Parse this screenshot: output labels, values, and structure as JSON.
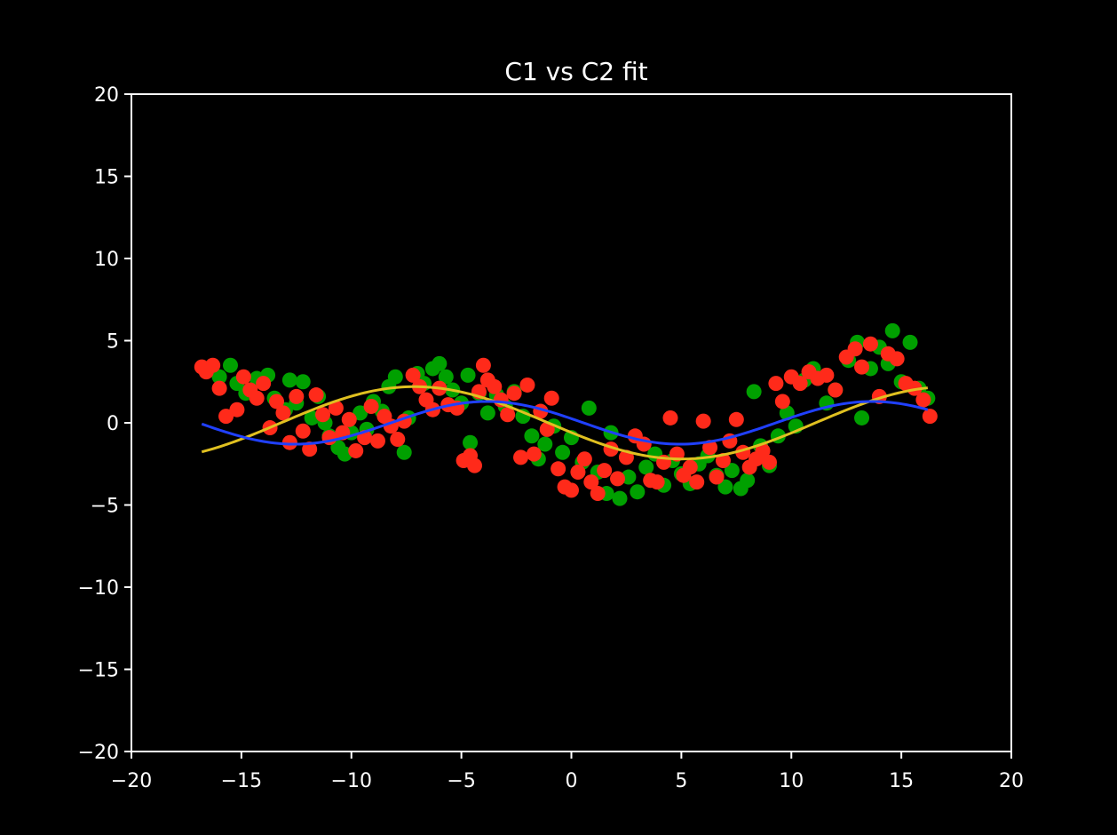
{
  "chart_data": {
    "type": "scatter",
    "title": "C1 vs C2 fit",
    "xlabel": "",
    "ylabel": "",
    "xlim": [
      -20,
      20
    ],
    "ylim": [
      -20,
      20
    ],
    "xticks": [
      -20,
      -15,
      -10,
      -5,
      0,
      5,
      10,
      15,
      20
    ],
    "yticks": [
      -20,
      -15,
      -10,
      -5,
      0,
      5,
      10,
      15,
      20
    ],
    "tick_labels_x": [
      "−20",
      "−15",
      "−10",
      "−5",
      "0",
      "5",
      "10",
      "15",
      "20"
    ],
    "tick_labels_y": [
      "−20",
      "−15",
      "−10",
      "−5",
      "0",
      "5",
      "10",
      "15",
      "20"
    ],
    "grid": false,
    "colors": {
      "background": "#000000",
      "axes": "#ffffff",
      "c1_points": "#00a000",
      "c2_points": "#ff2a1a",
      "c1_fit": "#e0c020",
      "c2_fit": "#2040ff"
    },
    "series": [
      {
        "kind": "scatter",
        "color": "#00a000",
        "points": [
          [
            -16.5,
            3.3
          ],
          [
            -16.0,
            2.8
          ],
          [
            -15.5,
            3.5
          ],
          [
            -15.2,
            2.4
          ],
          [
            -14.8,
            1.8
          ],
          [
            -14.3,
            2.7
          ],
          [
            -13.8,
            2.9
          ],
          [
            -13.5,
            1.5
          ],
          [
            -13.0,
            0.8
          ],
          [
            -12.8,
            2.6
          ],
          [
            -12.5,
            1.2
          ],
          [
            -12.2,
            2.5
          ],
          [
            -11.8,
            0.3
          ],
          [
            -11.5,
            1.6
          ],
          [
            -11.2,
            0.0
          ],
          [
            -11.0,
            -0.8
          ],
          [
            -10.6,
            -1.5
          ],
          [
            -10.3,
            -1.9
          ],
          [
            -10.0,
            -0.6
          ],
          [
            -9.6,
            0.6
          ],
          [
            -9.3,
            -0.4
          ],
          [
            -9.0,
            1.3
          ],
          [
            -8.6,
            0.7
          ],
          [
            -8.3,
            2.2
          ],
          [
            -8.0,
            2.8
          ],
          [
            -7.6,
            -1.8
          ],
          [
            -7.4,
            0.3
          ],
          [
            -7.0,
            3.0
          ],
          [
            -6.7,
            2.4
          ],
          [
            -6.3,
            3.3
          ],
          [
            -6.0,
            3.6
          ],
          [
            -5.7,
            2.8
          ],
          [
            -5.4,
            2.0
          ],
          [
            -5.0,
            1.2
          ],
          [
            -4.7,
            2.9
          ],
          [
            -4.6,
            -1.2
          ],
          [
            -4.2,
            1.8
          ],
          [
            -3.8,
            0.6
          ],
          [
            -3.4,
            1.7
          ],
          [
            -3.0,
            1.0
          ],
          [
            -2.6,
            1.9
          ],
          [
            -2.2,
            0.4
          ],
          [
            -1.8,
            -0.8
          ],
          [
            -1.5,
            -2.2
          ],
          [
            -1.2,
            -1.3
          ],
          [
            -0.8,
            -0.2
          ],
          [
            -0.4,
            -1.8
          ],
          [
            0.0,
            -0.9
          ],
          [
            0.5,
            -2.4
          ],
          [
            0.8,
            0.9
          ],
          [
            1.2,
            -3.0
          ],
          [
            1.6,
            -4.3
          ],
          [
            1.8,
            -0.6
          ],
          [
            2.2,
            -4.6
          ],
          [
            2.6,
            -3.3
          ],
          [
            3.0,
            -4.2
          ],
          [
            3.4,
            -2.7
          ],
          [
            3.8,
            -1.9
          ],
          [
            4.2,
            -3.8
          ],
          [
            4.6,
            -2.3
          ],
          [
            5.0,
            -3.1
          ],
          [
            5.4,
            -3.7
          ],
          [
            5.8,
            -2.5
          ],
          [
            6.2,
            -2.0
          ],
          [
            6.6,
            -3.2
          ],
          [
            7.0,
            -3.9
          ],
          [
            7.3,
            -2.9
          ],
          [
            7.7,
            -4.0
          ],
          [
            8.0,
            -3.5
          ],
          [
            8.3,
            1.9
          ],
          [
            8.6,
            -1.4
          ],
          [
            9.0,
            -2.6
          ],
          [
            9.4,
            -0.8
          ],
          [
            9.8,
            0.6
          ],
          [
            10.2,
            -0.2
          ],
          [
            10.6,
            2.6
          ],
          [
            11.0,
            3.3
          ],
          [
            11.6,
            1.2
          ],
          [
            12.0,
            2.0
          ],
          [
            12.6,
            3.8
          ],
          [
            13.0,
            4.9
          ],
          [
            13.2,
            0.3
          ],
          [
            13.6,
            3.3
          ],
          [
            14.0,
            4.6
          ],
          [
            14.4,
            3.6
          ],
          [
            14.6,
            5.6
          ],
          [
            15.0,
            2.5
          ],
          [
            15.4,
            4.9
          ],
          [
            15.8,
            2.1
          ],
          [
            16.2,
            1.5
          ]
        ]
      },
      {
        "kind": "scatter",
        "color": "#ff2a1a",
        "points": [
          [
            -16.8,
            3.4
          ],
          [
            -16.6,
            3.1
          ],
          [
            -16.3,
            3.5
          ],
          [
            -16.0,
            2.1
          ],
          [
            -15.7,
            0.4
          ],
          [
            -15.2,
            0.8
          ],
          [
            -14.9,
            2.8
          ],
          [
            -14.6,
            2.0
          ],
          [
            -14.3,
            1.5
          ],
          [
            -14.0,
            2.4
          ],
          [
            -13.7,
            -0.3
          ],
          [
            -13.4,
            1.3
          ],
          [
            -13.1,
            0.6
          ],
          [
            -12.8,
            -1.2
          ],
          [
            -12.5,
            1.6
          ],
          [
            -12.2,
            -0.5
          ],
          [
            -11.9,
            -1.6
          ],
          [
            -11.6,
            1.7
          ],
          [
            -11.3,
            0.5
          ],
          [
            -11.0,
            -0.9
          ],
          [
            -10.7,
            0.9
          ],
          [
            -10.4,
            -0.6
          ],
          [
            -10.1,
            0.2
          ],
          [
            -9.8,
            -1.7
          ],
          [
            -9.4,
            -0.9
          ],
          [
            -9.1,
            1.0
          ],
          [
            -8.8,
            -1.1
          ],
          [
            -8.5,
            0.4
          ],
          [
            -8.2,
            -0.2
          ],
          [
            -7.9,
            -1.0
          ],
          [
            -7.6,
            0.1
          ],
          [
            -7.2,
            2.9
          ],
          [
            -6.9,
            2.2
          ],
          [
            -6.6,
            1.4
          ],
          [
            -6.3,
            0.8
          ],
          [
            -6.0,
            2.1
          ],
          [
            -5.6,
            1.1
          ],
          [
            -5.2,
            0.9
          ],
          [
            -4.9,
            -2.3
          ],
          [
            -4.6,
            -2.0
          ],
          [
            -4.4,
            -2.6
          ],
          [
            -4.2,
            1.9
          ],
          [
            -4.0,
            3.5
          ],
          [
            -3.8,
            2.6
          ],
          [
            -3.5,
            2.2
          ],
          [
            -3.2,
            1.4
          ],
          [
            -2.9,
            0.5
          ],
          [
            -2.6,
            1.8
          ],
          [
            -2.3,
            -2.1
          ],
          [
            -2.0,
            2.3
          ],
          [
            -1.7,
            -1.9
          ],
          [
            -1.4,
            0.7
          ],
          [
            -1.1,
            -0.4
          ],
          [
            -0.9,
            1.5
          ],
          [
            -0.6,
            -2.8
          ],
          [
            -0.3,
            -3.9
          ],
          [
            0.0,
            -4.1
          ],
          [
            0.3,
            -3.0
          ],
          [
            0.6,
            -2.2
          ],
          [
            0.9,
            -3.6
          ],
          [
            1.2,
            -4.3
          ],
          [
            1.5,
            -2.9
          ],
          [
            1.8,
            -1.6
          ],
          [
            2.1,
            -3.4
          ],
          [
            2.5,
            -2.1
          ],
          [
            2.9,
            -0.8
          ],
          [
            3.3,
            -1.3
          ],
          [
            3.6,
            -3.5
          ],
          [
            3.9,
            -3.6
          ],
          [
            4.2,
            -2.4
          ],
          [
            4.5,
            0.3
          ],
          [
            4.8,
            -1.9
          ],
          [
            5.1,
            -3.2
          ],
          [
            5.4,
            -2.7
          ],
          [
            5.7,
            -3.6
          ],
          [
            6.0,
            0.1
          ],
          [
            6.3,
            -1.5
          ],
          [
            6.6,
            -3.3
          ],
          [
            6.9,
            -2.3
          ],
          [
            7.2,
            -1.1
          ],
          [
            7.5,
            0.2
          ],
          [
            7.8,
            -1.8
          ],
          [
            8.1,
            -2.7
          ],
          [
            8.4,
            -2.2
          ],
          [
            8.7,
            -1.7
          ],
          [
            9.0,
            -2.4
          ],
          [
            9.3,
            2.4
          ],
          [
            9.6,
            1.3
          ],
          [
            10.0,
            2.8
          ],
          [
            10.4,
            2.4
          ],
          [
            10.8,
            3.1
          ],
          [
            11.2,
            2.7
          ],
          [
            11.6,
            2.9
          ],
          [
            12.0,
            2.0
          ],
          [
            12.5,
            4.0
          ],
          [
            12.9,
            4.5
          ],
          [
            13.2,
            3.4
          ],
          [
            13.6,
            4.8
          ],
          [
            14.0,
            1.6
          ],
          [
            14.4,
            4.2
          ],
          [
            14.8,
            3.9
          ],
          [
            15.2,
            2.4
          ],
          [
            15.6,
            2.1
          ],
          [
            16.0,
            1.4
          ],
          [
            16.3,
            0.4
          ]
        ]
      },
      {
        "kind": "line",
        "color": "#e0c020",
        "formula": "y = 2.2 * sin(2*pi*(x - (-13.2)) / 24.3)",
        "x_range": [
          -16.8,
          16.2
        ],
        "amplitude": 2.2,
        "period": 24.3,
        "phase_x": -13.2
      },
      {
        "kind": "line",
        "color": "#2040ff",
        "formula": "y = 1.3 * sin(2*pi*(x - (-8.2)) / 17.5)",
        "x_range": [
          -16.8,
          16.2
        ],
        "amplitude": 1.3,
        "period": 17.5,
        "phase_x": -8.2
      }
    ]
  }
}
